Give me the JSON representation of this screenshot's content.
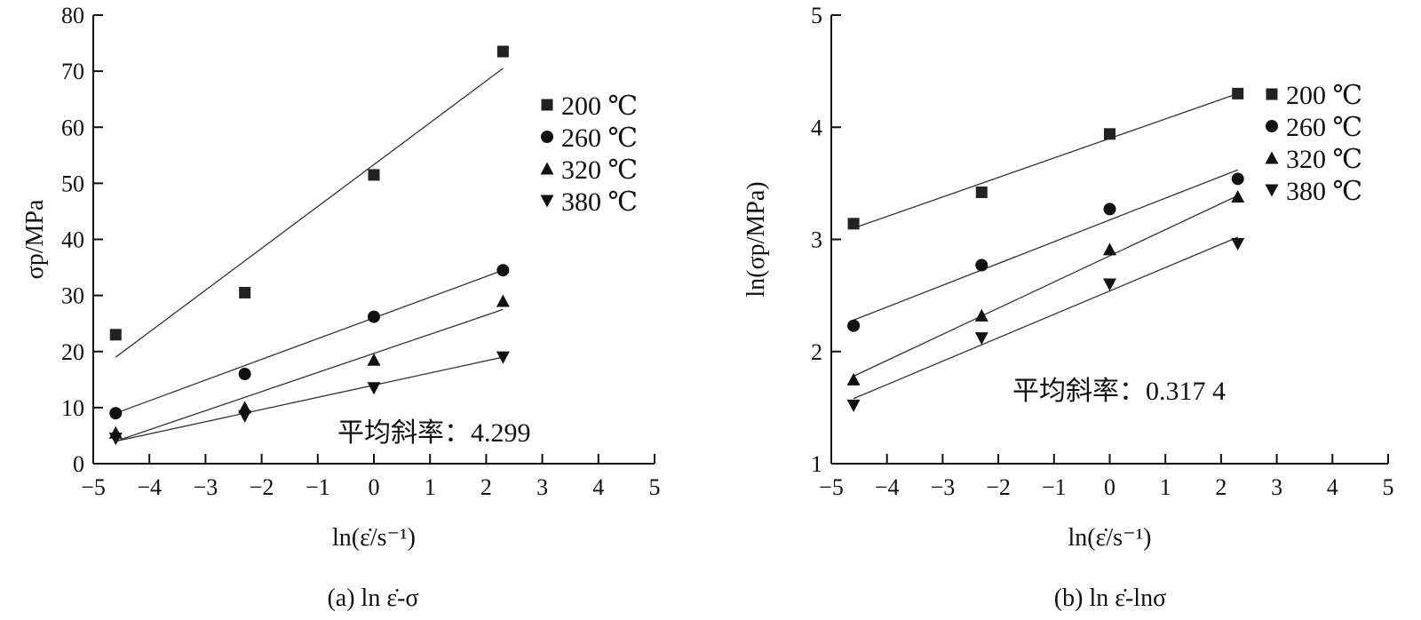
{
  "chart_data": [
    {
      "type": "scatter",
      "caption": "(a) ln ε̇-σ",
      "xlabel": "ln(ε̇/s⁻¹)",
      "ylabel": "σp/MPa",
      "xlim": [
        -5,
        5
      ],
      "ylim": [
        0,
        80
      ],
      "xticks": [
        -5,
        -4,
        -3,
        -2,
        -1,
        0,
        1,
        2,
        3,
        4,
        5
      ],
      "xtick_labels": [
        "−5",
        "−4",
        "−3",
        "−2",
        "−1",
        "0",
        "1",
        "2",
        "3",
        "4",
        "5"
      ],
      "yticks": [
        0,
        10,
        20,
        30,
        40,
        50,
        60,
        70,
        80
      ],
      "ytick_labels": [
        "0",
        "10",
        "20",
        "30",
        "40",
        "50",
        "60",
        "70",
        "80"
      ],
      "annotation": "平均斜率：4.299",
      "legend_position": "top-right",
      "x": [
        -4.6,
        -2.3,
        0,
        2.3
      ],
      "series": [
        {
          "name": "200 ℃",
          "marker": "square",
          "values": [
            23,
            30.5,
            51.5,
            73.5
          ],
          "fit": [
            [
              -4.6,
              19
            ],
            [
              2.3,
              70.5
            ]
          ]
        },
        {
          "name": "260 ℃",
          "marker": "circle",
          "values": [
            9,
            16,
            26.2,
            34.5
          ],
          "fit": [
            [
              -4.6,
              9
            ],
            [
              2.3,
              34.5
            ]
          ]
        },
        {
          "name": "320 ℃",
          "marker": "triangle-up",
          "values": [
            5.5,
            10,
            18.5,
            29
          ],
          "fit": [
            [
              -4.6,
              4
            ],
            [
              2.3,
              27.5
            ]
          ]
        },
        {
          "name": "380 ℃",
          "marker": "triangle-down",
          "values": [
            4.5,
            8.5,
            13.5,
            19
          ],
          "fit": [
            [
              -4.6,
              4
            ],
            [
              2.3,
              19
            ]
          ]
        }
      ]
    },
    {
      "type": "scatter",
      "caption": "(b) ln ε̇-lnσ",
      "xlabel": "ln(ε̇/s⁻¹)",
      "ylabel": "ln(σp/MPa)",
      "xlim": [
        -5,
        5
      ],
      "ylim": [
        1,
        5
      ],
      "xticks": [
        -5,
        -4,
        -3,
        -2,
        -1,
        0,
        1,
        2,
        3,
        4,
        5
      ],
      "xtick_labels": [
        "−5",
        "−4",
        "−3",
        "−2",
        "−1",
        "0",
        "1",
        "2",
        "3",
        "4",
        "5"
      ],
      "yticks": [
        1,
        2,
        3,
        4,
        5
      ],
      "ytick_labels": [
        "1",
        "2",
        "3",
        "4",
        "5"
      ],
      "annotation": "平均斜率：0.317 4",
      "legend_position": "top-right",
      "x": [
        -4.6,
        -2.3,
        0,
        2.3
      ],
      "series": [
        {
          "name": "200 ℃",
          "marker": "square",
          "values": [
            3.14,
            3.42,
            3.94,
            4.3
          ],
          "fit": [
            [
              -4.6,
              3.1
            ],
            [
              2.3,
              4.3
            ]
          ]
        },
        {
          "name": "260 ℃",
          "marker": "circle",
          "values": [
            2.23,
            2.77,
            3.27,
            3.54
          ],
          "fit": [
            [
              -4.6,
              2.28
            ],
            [
              2.3,
              3.62
            ]
          ]
        },
        {
          "name": "320 ℃",
          "marker": "triangle-up",
          "values": [
            1.75,
            2.32,
            2.91,
            3.38
          ],
          "fit": [
            [
              -4.6,
              1.78
            ],
            [
              2.3,
              3.39
            ]
          ]
        },
        {
          "name": "380 ℃",
          "marker": "triangle-down",
          "values": [
            1.52,
            2.12,
            2.6,
            2.96
          ],
          "fit": [
            [
              -4.6,
              1.58
            ],
            [
              2.3,
              3.02
            ]
          ]
        }
      ]
    }
  ]
}
